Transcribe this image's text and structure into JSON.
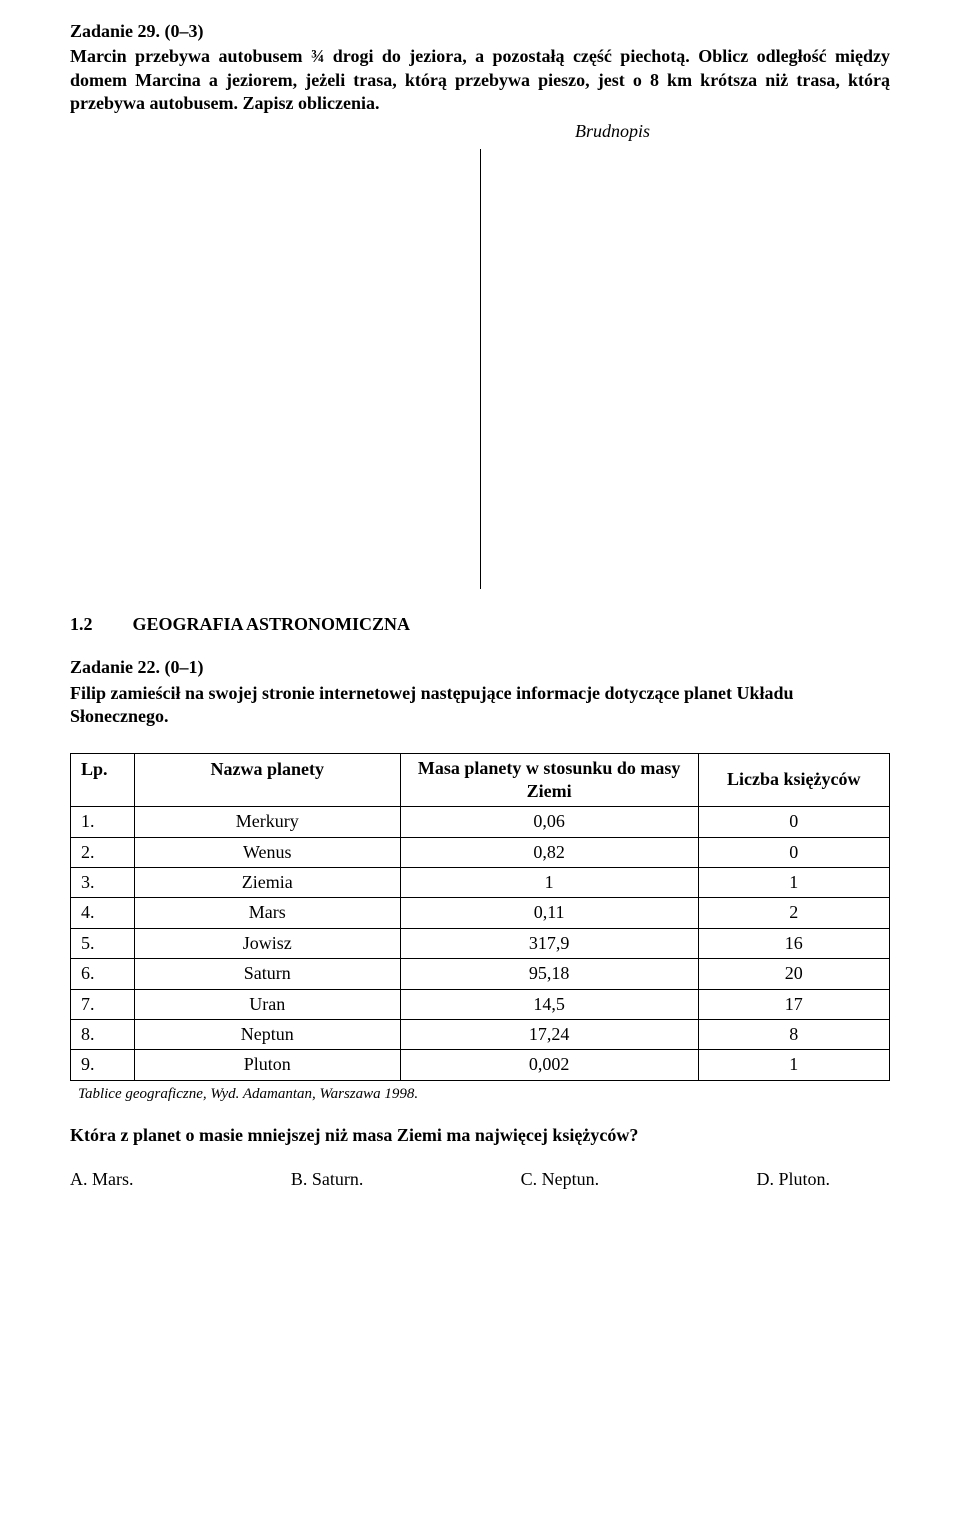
{
  "task29": {
    "header": "Zadanie 29. (0–3)",
    "body": "Marcin przebywa autobusem ¾ drogi do jeziora, a pozostałą część piechotą. Oblicz odległość między domem Marcina a jeziorem, jeżeli trasa, którą przebywa pieszo, jest o 8 km krótsza niż trasa, którą przebywa autobusem. Zapisz obliczenia.",
    "brudnopis_label": "Brudnopis"
  },
  "section": {
    "number": "1.2",
    "title": "GEOGRAFIA ASTRONOMICZNA"
  },
  "task22": {
    "header": "Zadanie 22. (0–1)",
    "body": "Filip zamieścił na swojej stronie internetowej następujące informacje dotyczące planet Układu Słonecznego."
  },
  "table": {
    "columns": {
      "lp": "Lp.",
      "name": "Nazwa planety",
      "mass": "Masa planety w stosunku do masy Ziemi",
      "moons": "Liczba księżyców"
    },
    "rows": [
      {
        "lp": "1.",
        "name": "Merkury",
        "mass": "0,06",
        "moons": "0"
      },
      {
        "lp": "2.",
        "name": "Wenus",
        "mass": "0,82",
        "moons": "0"
      },
      {
        "lp": "3.",
        "name": "Ziemia",
        "mass": "1",
        "moons": "1"
      },
      {
        "lp": "4.",
        "name": "Mars",
        "mass": "0,11",
        "moons": "2"
      },
      {
        "lp": "5.",
        "name": "Jowisz",
        "mass": "317,9",
        "moons": "16"
      },
      {
        "lp": "6.",
        "name": "Saturn",
        "mass": "95,18",
        "moons": "20"
      },
      {
        "lp": "7.",
        "name": "Uran",
        "mass": "14,5",
        "moons": "17"
      },
      {
        "lp": "8.",
        "name": "Neptun",
        "mass": "17,24",
        "moons": "8"
      },
      {
        "lp": "9.",
        "name": "Pluton",
        "mass": "0,002",
        "moons": "1"
      }
    ],
    "caption": "Tablice geograficzne, Wyd. Adamantan, Warszawa 1998."
  },
  "question": {
    "text": "Która z planet o masie mniejszej niż masa Ziemi ma najwięcej księżyców?",
    "options": {
      "a": "A. Mars.",
      "b": "B. Saturn.",
      "c": "C. Neptun.",
      "d": "D. Pluton."
    }
  }
}
